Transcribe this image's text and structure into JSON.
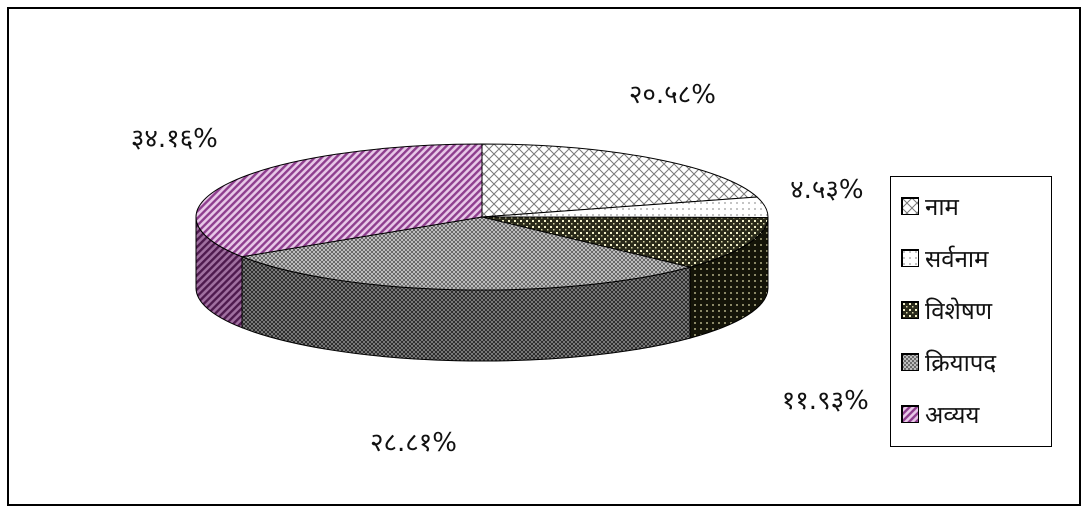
{
  "chart_data": {
    "type": "pie",
    "style": "3d-exploded-pie",
    "legend_position": "right",
    "slices": [
      {
        "label": "नाम",
        "value": 20.58,
        "value_label": "२०.५८%",
        "color": "#e6e6e6",
        "pattern": "crosshatch"
      },
      {
        "label": "सर्वनाम",
        "value": 4.53,
        "value_label": "४.५३%",
        "color": "#f4f4f4",
        "pattern": "dots-light"
      },
      {
        "label": "विशेषण",
        "value": 11.93,
        "value_label": "११.९३%",
        "color": "#2e2e1c",
        "pattern": "dots-dark"
      },
      {
        "label": "क्रियापद",
        "value": 28.81,
        "value_label": "२८.८१%",
        "color": "#8c8c8c",
        "pattern": "checker"
      },
      {
        "label": "अव्यय",
        "value": 34.16,
        "value_label": "३४.१६%",
        "color": "#b070b0",
        "pattern": "diagonal"
      }
    ]
  }
}
